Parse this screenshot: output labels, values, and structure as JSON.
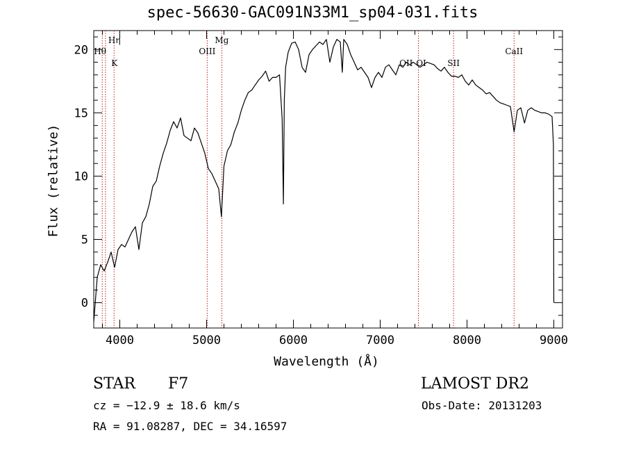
{
  "title": "spec-56630-GAC091N33M1_sp04-031.fits",
  "info": {
    "object_type": "STAR",
    "subclass": "F7",
    "cz": "cz = −12.9 ± 18.6 km/s",
    "radec": "RA =  91.08287, DEC =  34.16597",
    "survey": "LAMOST DR2",
    "obs_date": "Obs-Date: 20131203"
  },
  "colors": {
    "spectrum": "#000000",
    "line_markers": "#b22222",
    "axes": "#000000"
  },
  "chart_data": {
    "type": "line",
    "title": "spec-56630-GAC091N33M1_sp04-031.fits",
    "xlabel": "Wavelength (Å)",
    "ylabel": "Flux (relative)",
    "xlim": [
      3700,
      9100
    ],
    "ylim": [
      -2,
      21.5
    ],
    "x_ticks": [
      4000,
      5000,
      6000,
      7000,
      8000,
      9000
    ],
    "x_tick_labels": [
      "4000",
      "5000",
      "6000",
      "7000",
      "8000",
      "9000"
    ],
    "y_ticks": [
      0,
      5,
      10,
      15,
      20
    ],
    "y_tick_labels": [
      "0",
      "5",
      "10",
      "15",
      "20"
    ],
    "grid": false,
    "spectral_lines": [
      {
        "label": "Hη",
        "wavelength": 3835
      },
      {
        "label": "Hθ",
        "wavelength": 3798
      },
      {
        "label": "K",
        "wavelength": 3934
      },
      {
        "label": "OIII",
        "wavelength": 5007
      },
      {
        "label": "Mg",
        "wavelength": 5175
      },
      {
        "label": "OII",
        "wavelength": 7330
      },
      {
        "label": "OI",
        "wavelength": 7440
      },
      {
        "label": "SII",
        "wavelength": 7845
      },
      {
        "label": "CaII",
        "wavelength": 8542
      }
    ],
    "series": [
      {
        "x": [
          3700,
          3740,
          3780,
          3820,
          3860,
          3900,
          3940,
          3980,
          4020,
          4060,
          4100,
          4140,
          4180,
          4220,
          4260,
          4300,
          4340,
          4380,
          4420,
          4460,
          4500,
          4540,
          4580,
          4620,
          4660,
          4700,
          4740,
          4780,
          4820,
          4860,
          4900,
          4940,
          4980,
          5020,
          5060,
          5100,
          5140,
          5170,
          5200,
          5240,
          5280,
          5320,
          5360,
          5400,
          5440,
          5480,
          5520,
          5560,
          5600,
          5640,
          5680,
          5720,
          5760,
          5800,
          5840,
          5870,
          5885,
          5895,
          5910,
          5940,
          5980,
          6020,
          6060,
          6100,
          6140,
          6180,
          6220,
          6260,
          6300,
          6340,
          6380,
          6420,
          6460,
          6500,
          6540,
          6563,
          6580,
          6620,
          6660,
          6700,
          6740,
          6780,
          6820,
          6860,
          6900,
          6940,
          6980,
          7020,
          7060,
          7100,
          7140,
          7180,
          7220,
          7260,
          7300,
          7340,
          7380,
          7420,
          7460,
          7500,
          7540,
          7580,
          7620,
          7660,
          7700,
          7740,
          7780,
          7820,
          7860,
          7900,
          7940,
          7980,
          8020,
          8060,
          8100,
          8140,
          8180,
          8220,
          8260,
          8300,
          8340,
          8380,
          8420,
          8460,
          8500,
          8542,
          8580,
          8620,
          8662,
          8700,
          8740,
          8780,
          8820,
          8860,
          8900,
          8940,
          8980,
          8995,
          9000
        ],
        "values": [
          -1.5,
          2.0,
          3.0,
          2.5,
          3.2,
          4.0,
          2.8,
          4.2,
          4.6,
          4.4,
          5.0,
          5.6,
          6.0,
          4.2,
          6.3,
          6.8,
          7.8,
          9.2,
          9.6,
          10.8,
          11.8,
          12.6,
          13.6,
          14.3,
          13.8,
          14.6,
          13.2,
          13.0,
          12.8,
          13.8,
          13.4,
          12.6,
          11.8,
          10.6,
          10.2,
          9.6,
          9.0,
          6.8,
          10.8,
          12.0,
          12.5,
          13.5,
          14.2,
          15.2,
          16.0,
          16.6,
          16.8,
          17.2,
          17.6,
          17.9,
          18.3,
          17.5,
          17.8,
          17.8,
          18.0,
          14.5,
          7.8,
          16.0,
          18.6,
          19.8,
          20.5,
          20.6,
          20.0,
          18.6,
          18.2,
          19.6,
          20.0,
          20.3,
          20.6,
          20.4,
          20.8,
          19.0,
          20.2,
          20.8,
          20.6,
          18.2,
          20.8,
          20.4,
          19.6,
          19.0,
          18.4,
          18.6,
          18.2,
          17.8,
          17.0,
          17.8,
          18.2,
          17.8,
          18.6,
          18.8,
          18.4,
          18.0,
          18.8,
          18.6,
          19.0,
          18.8,
          19.0,
          18.8,
          18.6,
          18.8,
          19.0,
          18.9,
          18.8,
          18.5,
          18.3,
          18.6,
          18.2,
          17.9,
          17.9,
          17.8,
          18.0,
          17.5,
          17.2,
          17.6,
          17.2,
          17.0,
          16.8,
          16.5,
          16.6,
          16.3,
          16.0,
          15.8,
          15.7,
          15.6,
          15.5,
          13.5,
          15.2,
          15.4,
          14.2,
          15.2,
          15.4,
          15.2,
          15.1,
          15.0,
          15.0,
          14.9,
          14.7,
          12.5,
          0.0
        ]
      }
    ]
  }
}
